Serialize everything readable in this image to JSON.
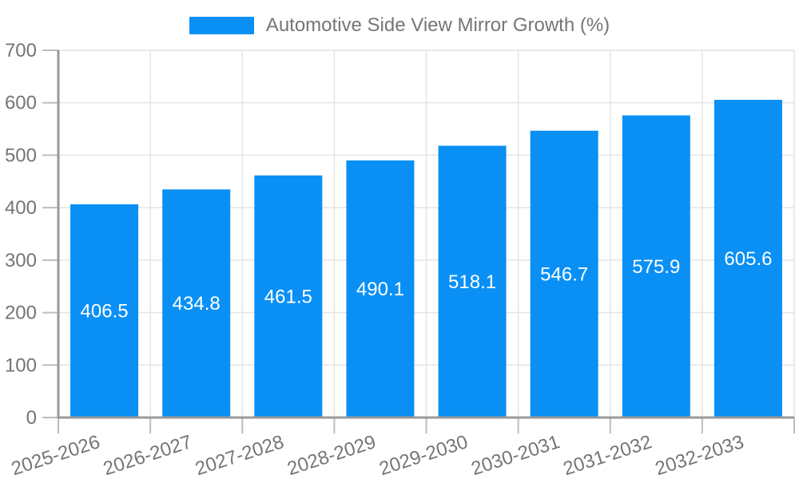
{
  "chart_data": {
    "type": "bar",
    "title": "Automotive Side View Mirror Growth (%)",
    "categories": [
      "2025-2026",
      "2026-2027",
      "2027-2028",
      "2028-2029",
      "2029-2030",
      "2030-2031",
      "2031-2032",
      "2032-2033"
    ],
    "values": [
      406.5,
      434.8,
      461.5,
      490.1,
      518.1,
      546.7,
      575.9,
      605.6
    ],
    "xlabel": "",
    "ylabel": "",
    "ylim": [
      0,
      700
    ],
    "yticks": [
      0,
      100,
      200,
      300,
      400,
      500,
      600,
      700
    ],
    "grid": true,
    "legend_position": "top",
    "colors": {
      "bar": "#0A90F5",
      "value_label": "#FFFFFF",
      "tick_text": "#757575",
      "axis_line": "#9A9A9A",
      "tick_mark": "#BDBDBD",
      "grid_line": "#E4E4E4",
      "background": "#FFFFFF"
    }
  }
}
